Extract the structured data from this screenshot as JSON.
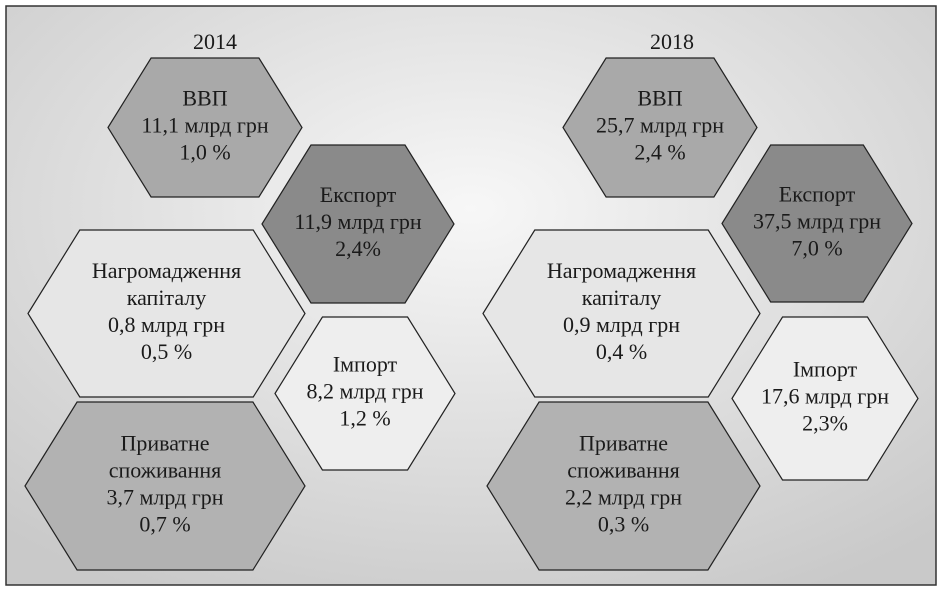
{
  "panels": [
    {
      "year": "2014",
      "cells": [
        {
          "lines": [
            "ВВП",
            "11,1 млрд грн",
            "1,0 %"
          ]
        },
        {
          "lines": [
            "Експорт",
            "11,9 млрд грн",
            "2,4%"
          ]
        },
        {
          "lines": [
            "Нагромадження",
            "капіталу",
            "0,8 млрд грн",
            "0,5 %"
          ]
        },
        {
          "lines": [
            "Імпорт",
            "8,2 млрд грн",
            "1,2 %"
          ]
        },
        {
          "lines": [
            "Приватне",
            "споживання",
            "3,7 млрд грн",
            "0,7 %"
          ]
        }
      ]
    },
    {
      "year": "2018",
      "cells": [
        {
          "lines": [
            "ВВП",
            "25,7 млрд грн",
            "2,4 %"
          ]
        },
        {
          "lines": [
            "Експорт",
            "37,5 млрд грн",
            "7,0 %"
          ]
        },
        {
          "lines": [
            "Нагромадження",
            "капіталу",
            "0,9 млрд грн",
            "0,4 %"
          ]
        },
        {
          "lines": [
            "Імпорт",
            "17,6 млрд грн",
            "2,3%"
          ]
        },
        {
          "lines": [
            "Приватне",
            "споживання",
            "2,2 млрд грн",
            "0,3 %"
          ]
        }
      ]
    }
  ]
}
